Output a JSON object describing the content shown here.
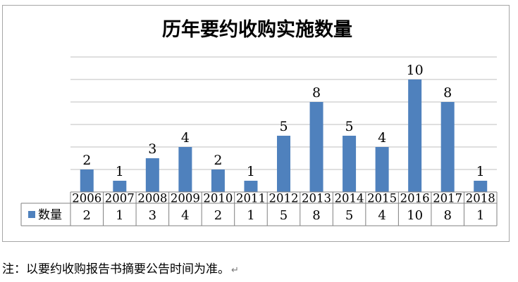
{
  "chart_data": {
    "type": "bar",
    "title": "历年要约收购实施数量",
    "categories": [
      "2006",
      "2007",
      "2008",
      "2009",
      "2010",
      "2011",
      "2012",
      "2013",
      "2014",
      "2015",
      "2016",
      "2017",
      "2018"
    ],
    "series": [
      {
        "name": "数量",
        "values": [
          2,
          1,
          3,
          4,
          2,
          1,
          5,
          8,
          5,
          4,
          10,
          8,
          1
        ],
        "color": "#4f81bd"
      }
    ],
    "ylim": [
      0,
      12
    ],
    "y_major_unit": 2,
    "grid": true,
    "data_labels": true,
    "legend": "data-table"
  },
  "footnote": "注：以要约收购报告书摘要公告时间为准。",
  "footnote_mark": "↵",
  "colors": {
    "bar": "#4f81bd",
    "grid": "#bfbfbf",
    "border": "#a6a6a6"
  }
}
